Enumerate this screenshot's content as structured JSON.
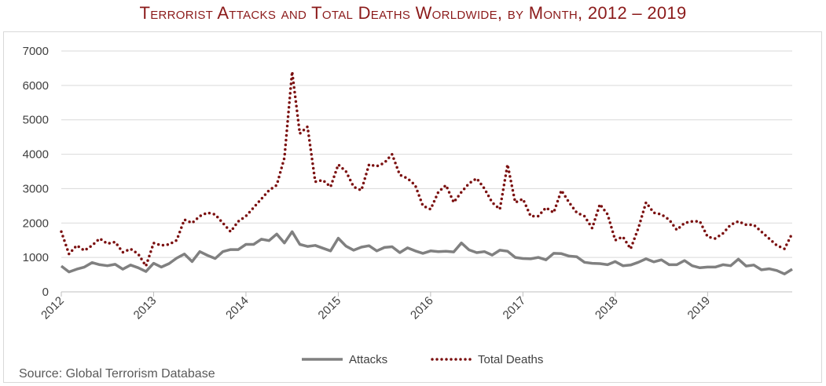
{
  "chart_data": {
    "type": "line",
    "title": "Terrorist Attacks and Total Deaths Worldwide, by Month, 2012 – 2019",
    "source": "Source: Global Terrorism Database",
    "ylim": [
      0,
      7000
    ],
    "yticks": [
      0,
      1000,
      2000,
      3000,
      4000,
      5000,
      6000,
      7000
    ],
    "xtick_labels": [
      "2012",
      "2013",
      "2014",
      "2015",
      "2016",
      "2017",
      "2018",
      "2019"
    ],
    "grid": true,
    "legend_position": "bottom",
    "series": [
      {
        "name": "Attacks",
        "color": "#808080",
        "style": "solid",
        "values": [
          750,
          580,
          660,
          720,
          850,
          790,
          760,
          800,
          660,
          780,
          700,
          590,
          830,
          720,
          820,
          980,
          1100,
          880,
          1170,
          1060,
          970,
          1170,
          1230,
          1230,
          1380,
          1380,
          1530,
          1490,
          1680,
          1420,
          1750,
          1380,
          1320,
          1350,
          1270,
          1190,
          1560,
          1330,
          1210,
          1300,
          1340,
          1190,
          1290,
          1310,
          1140,
          1280,
          1190,
          1120,
          1190,
          1170,
          1180,
          1160,
          1420,
          1220,
          1140,
          1170,
          1070,
          1210,
          1180,
          1000,
          970,
          960,
          1000,
          930,
          1120,
          1110,
          1040,
          1020,
          860,
          830,
          820,
          790,
          880,
          760,
          780,
          860,
          960,
          870,
          930,
          790,
          790,
          910,
          760,
          700,
          720,
          720,
          790,
          760,
          950,
          750,
          780,
          640,
          670,
          620,
          520,
          660
        ]
      },
      {
        "name": "Total Deaths",
        "color": "#7b1010",
        "style": "dotted",
        "values": [
          1750,
          1100,
          1350,
          1200,
          1350,
          1550,
          1400,
          1450,
          1150,
          1250,
          1100,
          750,
          1420,
          1350,
          1380,
          1500,
          2100,
          2000,
          2200,
          2300,
          2250,
          2000,
          1750,
          2050,
          2200,
          2450,
          2700,
          2950,
          3100,
          3900,
          6400,
          4600,
          4800,
          3200,
          3250,
          3050,
          3700,
          3500,
          3050,
          2950,
          3700,
          3650,
          3750,
          4000,
          3400,
          3300,
          3100,
          2500,
          2400,
          2900,
          3100,
          2600,
          2900,
          3150,
          3300,
          3000,
          2600,
          2400,
          3700,
          2600,
          2700,
          2200,
          2200,
          2450,
          2300,
          2950,
          2600,
          2300,
          2200,
          1850,
          2550,
          2250,
          1500,
          1600,
          1250,
          1850,
          2600,
          2300,
          2250,
          2100,
          1800,
          2000,
          2050,
          2050,
          1600,
          1550,
          1700,
          1950,
          2050,
          1950,
          1950,
          1750,
          1550,
          1350,
          1250,
          1700
        ]
      }
    ]
  }
}
